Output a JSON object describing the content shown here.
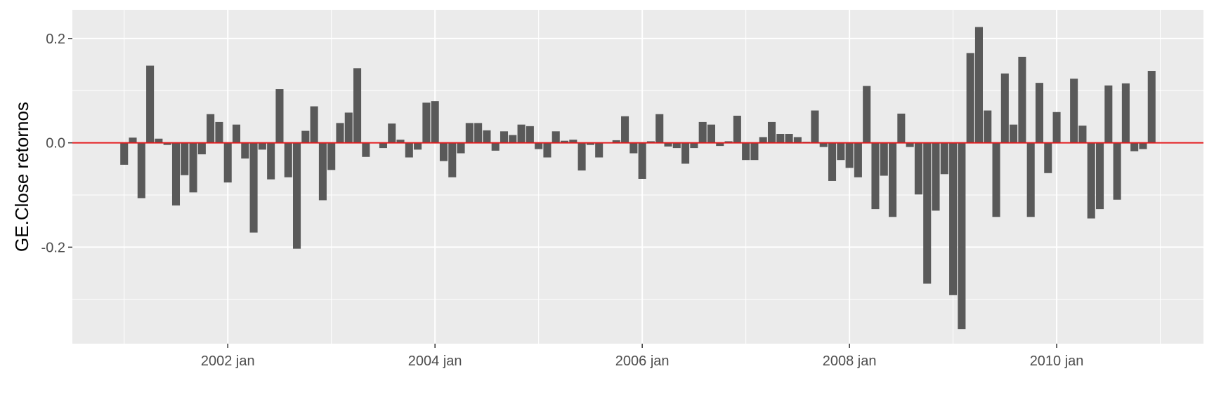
{
  "chart_data": {
    "type": "bar",
    "title": "",
    "xlabel": "",
    "ylabel": "GE.Close retornos",
    "x_ticks": [
      "2002 jan",
      "2004 jan",
      "2006 jan",
      "2008 jan",
      "2010 jan"
    ],
    "x_tick_years": [
      2002,
      2004,
      2006,
      2008,
      2010
    ],
    "y_ticks": [
      "-0.2",
      "0.0",
      "0.2"
    ],
    "y_tick_values": [
      -0.2,
      0.0,
      0.2
    ],
    "ylim": [
      -0.385,
      0.255
    ],
    "xlim": [
      "2000-07",
      "2011-06"
    ],
    "grid": true,
    "legend": "none",
    "colors": {
      "bar": "#595959",
      "reference_line": "#e31a1c",
      "panel_background": "#ebebeb",
      "grid": "#ffffff",
      "tick_text": "#4d4d4d"
    },
    "reference_line_y": 0,
    "start": "2001-01",
    "values": [
      -0.042,
      0.01,
      -0.106,
      0.148,
      0.008,
      -0.004,
      -0.12,
      -0.062,
      -0.095,
      -0.022,
      0.055,
      0.04,
      -0.076,
      0.035,
      -0.03,
      -0.172,
      -0.013,
      -0.07,
      0.103,
      -0.066,
      -0.203,
      0.023,
      0.07,
      -0.11,
      -0.052,
      0.038,
      0.058,
      0.143,
      -0.027,
      0.0,
      -0.01,
      0.037,
      0.006,
      -0.028,
      -0.013,
      0.077,
      0.08,
      -0.035,
      -0.066,
      -0.02,
      0.038,
      0.038,
      0.024,
      -0.015,
      0.022,
      0.015,
      0.035,
      0.032,
      -0.012,
      -0.028,
      0.022,
      0.004,
      0.006,
      -0.053,
      -0.004,
      -0.028,
      0.0,
      0.005,
      0.051,
      -0.02,
      -0.069,
      0.003,
      0.055,
      -0.007,
      -0.01,
      -0.04,
      -0.01,
      0.04,
      0.035,
      -0.006,
      0.003,
      0.052,
      -0.033,
      -0.033,
      0.011,
      0.04,
      0.017,
      0.017,
      0.011,
      0.002,
      0.062,
      -0.008,
      -0.073,
      -0.033,
      -0.048,
      -0.066,
      0.109,
      -0.127,
      -0.063,
      -0.142,
      0.056,
      -0.008,
      -0.099,
      -0.27,
      -0.13,
      -0.06,
      -0.292,
      -0.357,
      0.172,
      0.222,
      0.062,
      -0.142,
      0.133,
      0.035,
      0.165,
      -0.142,
      0.115,
      -0.058,
      0.059,
      0.0,
      0.123,
      0.033,
      -0.145,
      -0.127,
      0.11,
      -0.109,
      0.114,
      -0.016,
      -0.012,
      0.138
    ]
  }
}
